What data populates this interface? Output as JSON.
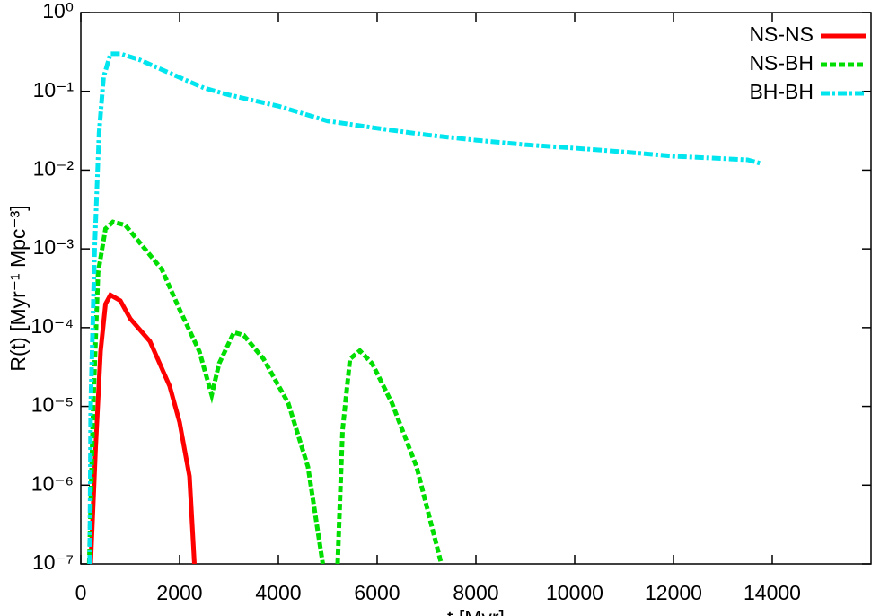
{
  "chart_data": {
    "type": "line",
    "y_label": "R(t) [Myr⁻¹ Mpc⁻³]",
    "x_label": "t [Myr]",
    "xlim": [
      0,
      16000
    ],
    "xticks": [
      0,
      2000,
      4000,
      6000,
      8000,
      10000,
      12000,
      14000
    ],
    "ylim": [
      1e-07,
      1
    ],
    "log_y": true,
    "yticks": [
      {
        "value": 1,
        "label": "10⁰"
      },
      {
        "value": 0.1,
        "label": "10⁻¹"
      },
      {
        "value": 0.01,
        "label": "10⁻²"
      },
      {
        "value": 0.001,
        "label": "10⁻³"
      },
      {
        "value": 0.0001,
        "label": "10⁻⁴"
      },
      {
        "value": 1e-05,
        "label": "10⁻⁵"
      },
      {
        "value": 1e-06,
        "label": "10⁻⁶"
      },
      {
        "value": 1e-07,
        "label": "10⁻⁷"
      }
    ],
    "legend": "top-right",
    "series": [
      {
        "name": "NS-NS",
        "color": "#ff0000",
        "dash": "solid",
        "x": [
          200,
          300,
          400,
          500,
          600,
          800,
          1000,
          1400,
          1800,
          2000,
          2200,
          2300
        ],
        "values": [
          1e-07,
          3e-06,
          5e-05,
          0.0002,
          0.00026,
          0.00022,
          0.00013,
          6.7e-05,
          1.8e-05,
          6.3e-06,
          1.3e-06,
          1e-07
        ]
      },
      {
        "name": "NS-BH",
        "color": "#00dd00",
        "dash": "dashed",
        "x": [
          170,
          250,
          350,
          500,
          650,
          900,
          1640,
          2000,
          2400,
          2650,
          2800,
          3100,
          3300,
          3700,
          4200,
          4600,
          4900,
          5050,
          5200,
          5300,
          5450,
          5650,
          5900,
          6300,
          6800,
          7300
        ],
        "values": [
          1e-07,
          1e-05,
          0.0005,
          0.0018,
          0.0022,
          0.002,
          0.00055,
          0.00017,
          5e-05,
          1.4e-05,
          3.5e-05,
          8.7e-05,
          8e-05,
          4e-05,
          1.1e-05,
          1.7e-06,
          1e-07,
          null,
          1e-07,
          5e-06,
          4e-05,
          5.1e-05,
          3.5e-05,
          1.1e-05,
          1.7e-06,
          1e-07
        ]
      },
      {
        "name": "BH-BH",
        "color": "#00e5ee",
        "dash": "dashdot",
        "x": [
          180,
          200,
          280,
          370,
          460,
          600,
          800,
          1200,
          2000,
          2500,
          3000,
          4000,
          5000,
          6000,
          7000,
          8000,
          9000,
          10000,
          11000,
          12000,
          13000,
          13500,
          13800
        ],
        "values": [
          1e-07,
          1e-05,
          0.001,
          0.03,
          0.15,
          0.3,
          0.3,
          0.25,
          0.15,
          0.11,
          0.09,
          0.065,
          0.042,
          0.034,
          0.028,
          0.024,
          0.021,
          0.019,
          0.017,
          0.015,
          0.014,
          0.0135,
          0.012
        ]
      }
    ]
  }
}
